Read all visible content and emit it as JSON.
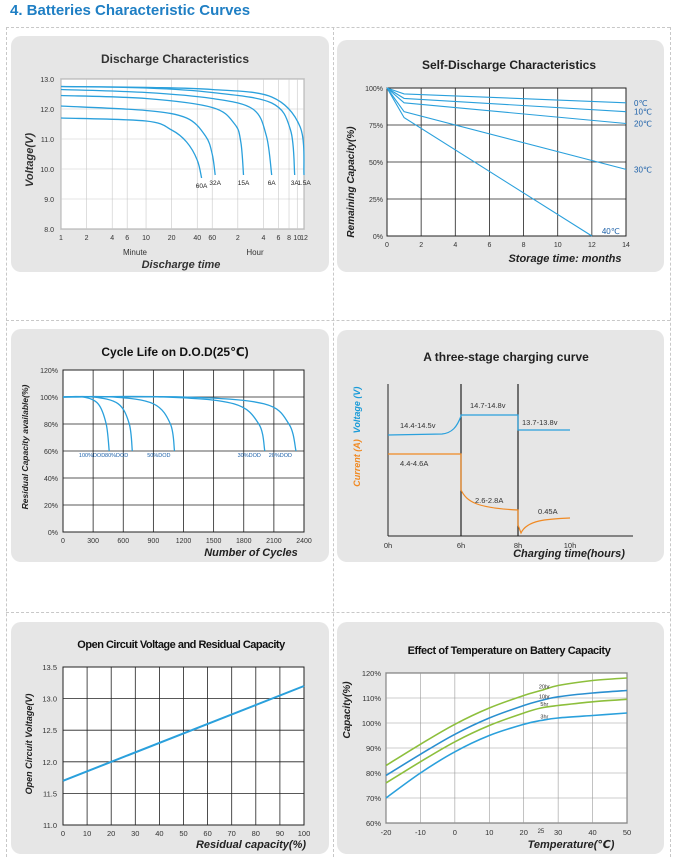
{
  "page": {
    "heading": "4.  Batteries Characteristic Curves"
  },
  "chart_data": [
    {
      "id": "discharge",
      "type": "line",
      "title": "Discharge Characteristics",
      "ylabel": "Voltage(V)",
      "xlabel": "Discharge time",
      "x_scale": "log (minutes)",
      "ylim": [
        8.0,
        13.0
      ],
      "y_ticks": [
        "13.0",
        "12.0",
        "11.0",
        "10.0",
        "9.0",
        "8.0"
      ],
      "x_ticks": [
        "1",
        "2",
        "4",
        "6",
        "10",
        "20",
        "40",
        "60",
        "2",
        "4",
        "6",
        "8",
        "10",
        "12"
      ],
      "x_group_labels": [
        "Minute",
        "Hour"
      ],
      "grid": true,
      "series": [
        {
          "name": "60A",
          "x": [
            1,
            10,
            20,
            30,
            40,
            45
          ],
          "y": [
            11.7,
            11.6,
            11.3,
            10.9,
            10.3,
            9.7
          ]
        },
        {
          "name": "32A",
          "x": [
            1,
            10,
            30,
            50,
            60,
            65
          ],
          "y": [
            12.1,
            11.95,
            11.7,
            11.1,
            10.5,
            9.8
          ]
        },
        {
          "name": "15A",
          "x": [
            1,
            10,
            60,
            110,
            130,
            140
          ],
          "y": [
            12.45,
            12.35,
            12.05,
            11.5,
            10.9,
            9.8
          ]
        },
        {
          "name": "6A",
          "x": [
            1,
            10,
            60,
            180,
            260,
            300
          ],
          "y": [
            12.65,
            12.55,
            12.35,
            12.0,
            11.1,
            9.8
          ]
        },
        {
          "name": "3A",
          "x": [
            1,
            10,
            60,
            300,
            500,
            560
          ],
          "y": [
            12.75,
            12.7,
            12.55,
            12.2,
            11.3,
            9.8
          ]
        },
        {
          "name": "1.5A",
          "x": [
            1,
            10,
            60,
            300,
            650,
            720
          ],
          "y": [
            12.75,
            12.72,
            12.65,
            12.4,
            11.4,
            9.8
          ]
        }
      ]
    },
    {
      "id": "self_discharge",
      "type": "line",
      "title": "Self-Discharge Characteristics",
      "ylabel": "Remaining Capacity(%)",
      "xlabel": "Storage time: months",
      "xlim": [
        0,
        14
      ],
      "ylim": [
        0,
        100
      ],
      "y_ticks": [
        "100%",
        "75%",
        "50%",
        "25%",
        "0%"
      ],
      "x_ticks": [
        "0",
        "2",
        "4",
        "6",
        "8",
        "10",
        "12",
        "14"
      ],
      "grid": true,
      "series": [
        {
          "name": "0℃",
          "x": [
            0,
            1,
            14
          ],
          "y": [
            100,
            96,
            90
          ]
        },
        {
          "name": "10℃",
          "x": [
            0,
            1,
            14
          ],
          "y": [
            100,
            93,
            84
          ]
        },
        {
          "name": "20℃",
          "x": [
            0,
            1,
            14
          ],
          "y": [
            100,
            90,
            76
          ]
        },
        {
          "name": "30℃",
          "x": [
            0,
            1,
            14
          ],
          "y": [
            100,
            84,
            45
          ]
        },
        {
          "name": "40℃",
          "x": [
            0,
            1,
            12
          ],
          "y": [
            100,
            80,
            0
          ]
        }
      ]
    },
    {
      "id": "cycle_life",
      "type": "line",
      "title": "Cycle Life on D.O.D(25℃)",
      "ylabel": "Residual Capacity available(%)",
      "xlabel": "Number of Cycles",
      "xlim": [
        0,
        2400
      ],
      "ylim": [
        0,
        120
      ],
      "y_ticks": [
        "120%",
        "100%",
        "80%",
        "60%",
        "40%",
        "20%",
        "0%"
      ],
      "x_ticks": [
        "0",
        "300",
        "600",
        "900",
        "1200",
        "1500",
        "1800",
        "2100",
        "2400"
      ],
      "grid": true,
      "series": [
        {
          "name": "100%DOD",
          "x": [
            0,
            200,
            350,
            430,
            460
          ],
          "y": [
            100,
            100,
            95,
            80,
            60
          ]
        },
        {
          "name": "80%DOD",
          "x": [
            0,
            300,
            550,
            660,
            690
          ],
          "y": [
            100,
            100,
            95,
            80,
            60
          ]
        },
        {
          "name": "50%DOD",
          "x": [
            0,
            500,
            900,
            1070,
            1110
          ],
          "y": [
            100,
            100,
            95,
            80,
            60
          ]
        },
        {
          "name": "30%DOD",
          "x": [
            0,
            1000,
            1700,
            1950,
            2010
          ],
          "y": [
            100,
            100,
            95,
            80,
            60
          ]
        },
        {
          "name": "20%DOD",
          "x": [
            0,
            1200,
            2000,
            2250,
            2320
          ],
          "y": [
            100,
            100,
            95,
            80,
            60
          ]
        }
      ]
    },
    {
      "id": "three_stage",
      "type": "line",
      "title": "A three-stage charging curve",
      "ylabel_current": "Current (A)",
      "ylabel_voltage": "Voltage (V)",
      "xlabel": "Charging time(hours)",
      "x_ticks": [
        "0h",
        "6h",
        "8h",
        "10h"
      ],
      "annotations": [
        "14.4-14.5v",
        "14.7-14.8v",
        "13.7-13.8v",
        "4.4-4.6A",
        "2.6-2.8A",
        "0.45A"
      ]
    },
    {
      "id": "ocv",
      "type": "line",
      "title": "Open Circuit Voltage and Residual Capacity",
      "ylabel": "Open Circuit Voltage(V)",
      "xlabel": "Residual capacity(%)",
      "xlim": [
        0,
        100
      ],
      "ylim": [
        11.0,
        13.5
      ],
      "y_ticks": [
        "13.5",
        "13.0",
        "12.5",
        "12.0",
        "11.5",
        "11.0"
      ],
      "x_ticks": [
        "0",
        "10",
        "20",
        "30",
        "40",
        "50",
        "60",
        "70",
        "80",
        "90",
        "100"
      ],
      "grid": true,
      "series": [
        {
          "name": "",
          "x": [
            0,
            100
          ],
          "y": [
            11.7,
            13.2
          ]
        }
      ]
    },
    {
      "id": "temperature",
      "type": "line",
      "title": "Effect of Temperature on Battery Capacity",
      "ylabel": "Capacity(%)",
      "xlabel": "Temperature(℃)",
      "xlim": [
        -20,
        50
      ],
      "ylim": [
        60,
        120
      ],
      "y_ticks": [
        "120%",
        "110%",
        "100%",
        "90%",
        "80%",
        "70%",
        "60%"
      ],
      "x_ticks": [
        "-20",
        "-10",
        "0",
        "10",
        "20",
        "25",
        "30",
        "40",
        "50"
      ],
      "grid": true,
      "series": [
        {
          "name": "20hr",
          "x": [
            -20,
            -10,
            0,
            10,
            20,
            25,
            30,
            40,
            50
          ],
          "y": [
            83,
            91.5,
            99.5,
            106,
            111,
            113,
            115,
            117,
            118
          ]
        },
        {
          "name": "10hr",
          "x": [
            -20,
            -10,
            0,
            10,
            20,
            25,
            30,
            40,
            50
          ],
          "y": [
            79,
            87.5,
            95.5,
            102,
            107,
            109,
            110.5,
            112,
            113
          ]
        },
        {
          "name": "5hr",
          "x": [
            -20,
            -10,
            0,
            10,
            20,
            25,
            30,
            40,
            50
          ],
          "y": [
            76,
            84.5,
            92.5,
            99,
            104,
            106,
            107,
            108.5,
            109.5
          ]
        },
        {
          "name": "3hr",
          "x": [
            -20,
            -10,
            0,
            10,
            20,
            25,
            30,
            40,
            50
          ],
          "y": [
            70,
            80,
            88.5,
            95,
            99.5,
            101,
            102,
            103,
            104
          ]
        }
      ]
    }
  ]
}
